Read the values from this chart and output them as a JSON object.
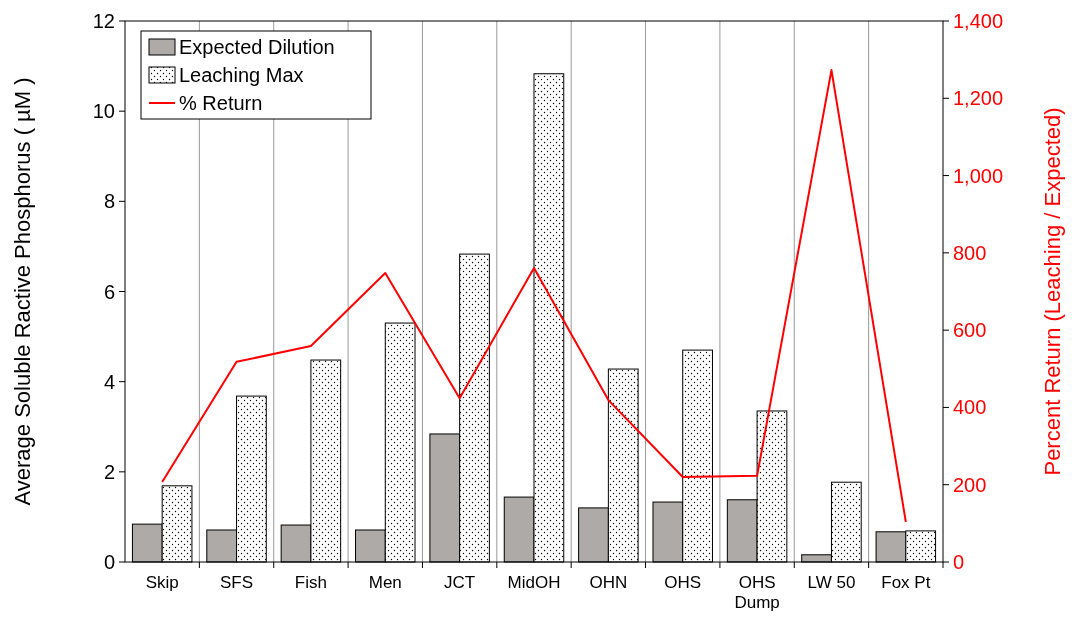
{
  "chart_data": {
    "type": "bar",
    "ylabel": "Average Soluble Ractive Phosphorus ( µM )",
    "y2label": "Percent Return (Leaching / Expected)",
    "categories": [
      "Skip",
      "SFS",
      "Fish",
      "Men",
      "JCT",
      "MidOH",
      "OHN",
      "OHS",
      "OHS\nDump",
      "LW 50",
      "Fox Pt"
    ],
    "series": [
      {
        "name": "Expected Dilution",
        "color": "#aeaaa8",
        "values": [
          0.84,
          0.71,
          0.82,
          0.71,
          2.84,
          1.44,
          1.2,
          1.33,
          1.38,
          0.16,
          0.67
        ]
      },
      {
        "name": "Leaching Max",
        "color": "#000000",
        "values": [
          1.69,
          3.68,
          4.48,
          5.3,
          6.83,
          10.83,
          4.28,
          4.7,
          3.35,
          1.77,
          0.69
        ]
      },
      {
        "name": "% Return",
        "type": "line",
        "axis": "y2",
        "color": "#ff0000",
        "values": [
          207,
          518,
          559,
          748,
          424,
          761,
          419,
          220,
          223,
          1273,
          104
        ]
      }
    ],
    "ylim": [
      0,
      12
    ],
    "yticks": [
      0,
      2,
      4,
      6,
      8,
      10,
      12
    ],
    "y2lim": [
      0,
      1400
    ],
    "y2ticks": [
      0,
      200,
      400,
      600,
      800,
      {
        "value": 1000,
        "label": "1,000"
      },
      {
        "value": 1200,
        "label": "1,200"
      },
      {
        "value": 1400,
        "label": "1,400"
      }
    ],
    "grid": "x",
    "legend": "top left",
    "line_style": "solid",
    "marker": "none"
  }
}
